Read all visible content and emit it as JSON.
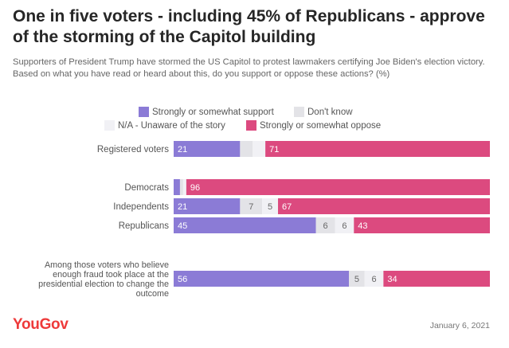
{
  "header": {
    "title": "One in five voters - including 45% of Republicans - approve of the storming of the Capitol building",
    "subtitle": "Supporters of President Trump have stormed the US Capitol to protest lawmakers certifying Joe Biden's election victory. Based on what you have read or heard about this, do you support or oppose these actions? (%)"
  },
  "footer": {
    "brand": "YouGov",
    "date": "January 6, 2021"
  },
  "colors": {
    "support": "#8b7bd6",
    "dont_know": "#e3e3e7",
    "na": "#f1f1f5",
    "oppose": "#dc4a7f"
  },
  "chart_data": {
    "type": "bar",
    "orientation": "horizontal",
    "stacked": true,
    "normalized": true,
    "legend_position": "top",
    "categories": [
      [
        "Registered voters"
      ],
      [
        "Democrats"
      ],
      [
        "Independents"
      ],
      [
        "Republicans"
      ],
      [
        "Among those voters who believe",
        "enough fraud took place at the",
        "presidential election to change the",
        "outcome"
      ]
    ],
    "series": [
      {
        "name": "Strongly or somewhat support",
        "color": "#8b7bd6",
        "values": [
          21,
          2,
          21,
          45,
          56
        ],
        "labels": [
          "21",
          "",
          "21",
          "45",
          "56"
        ]
      },
      {
        "name": "Don't know",
        "color": "#e3e3e7",
        "values": [
          4,
          1,
          7,
          6,
          5
        ],
        "labels": [
          "",
          "",
          "7",
          "6",
          "5"
        ]
      },
      {
        "name": "N/A - Unaware of the story",
        "color": "#f1f1f5",
        "values": [
          4,
          1,
          5,
          6,
          6
        ],
        "labels": [
          "",
          "",
          "5",
          "6",
          "6"
        ]
      },
      {
        "name": "Strongly or somewhat oppose",
        "color": "#dc4a7f",
        "values": [
          71,
          96,
          67,
          43,
          34
        ],
        "labels": [
          "71",
          "96",
          "67",
          "43",
          "34"
        ]
      }
    ]
  }
}
